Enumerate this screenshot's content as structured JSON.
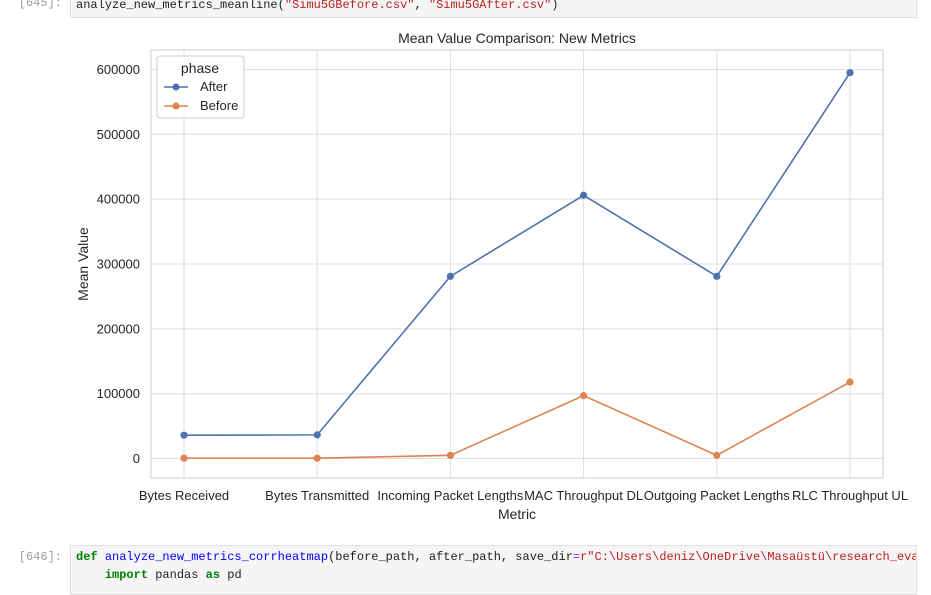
{
  "cells": {
    "top": {
      "prompt": "[645]:",
      "code_fn": "analyze_new_metrics_meanline",
      "code_open": "(",
      "code_arg1": "\"Simu5GBefore.csv\"",
      "code_sep": ", ",
      "code_arg2": "\"Simu5GAfter.csv\"",
      "code_close": ")"
    },
    "bottom": {
      "prompt": "[646]:",
      "line1_kw": "def",
      "line1_fn": "analyze_new_metrics_corrheatmap",
      "line1_params": "(before_path, after_path, save_dir",
      "line1_eq": "=",
      "line1_str": "r\"C:\\Users\\deniz\\OneDrive\\Masaüstü\\research_eval",
      "line2_kw1": "import",
      "line2_mod": " pandas ",
      "line2_kw2": "as",
      "line2_alias": " pd"
    }
  },
  "chart_data": {
    "type": "line",
    "title": "Mean Value Comparison: New Metrics",
    "xlabel": "Metric",
    "ylabel": "Mean Value",
    "categories": [
      "Bytes Received",
      "Bytes Transmitted",
      "Incoming Packet Lengths",
      "MAC Throughput DL",
      "Outgoing Packet Lengths",
      "RLC Throughput UL"
    ],
    "ylim": [
      -30000,
      630000
    ],
    "yticks": [
      0,
      100000,
      200000,
      300000,
      400000,
      500000,
      600000
    ],
    "grid": true,
    "legend": {
      "title": "phase",
      "placement": "top-left"
    },
    "series": [
      {
        "name": "After",
        "color": "#4c72b0",
        "values": [
          36000,
          36500,
          281000,
          406000,
          281000,
          595000
        ]
      },
      {
        "name": "Before",
        "color": "#dd8452",
        "values": [
          500,
          500,
          5000,
          97000,
          5000,
          118000
        ]
      }
    ]
  }
}
